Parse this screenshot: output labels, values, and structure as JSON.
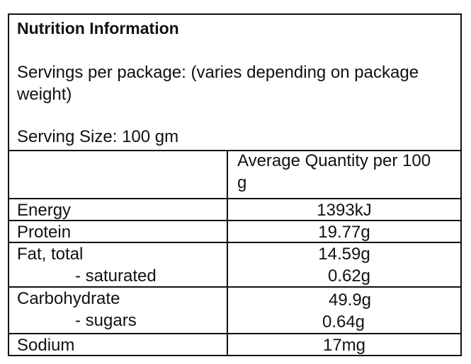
{
  "title": "Nutrition Information",
  "servings_per_package": "Servings per package: (varies depending on package weight)",
  "serving_size": "Serving Size: 100 gm",
  "column_header": "Average Quantity per 100 g",
  "rows": [
    {
      "label": "Energy",
      "value": "1393kJ"
    },
    {
      "label": "Protein",
      "value": "19.77g"
    },
    {
      "label": "Fat, total",
      "value": "14.59g",
      "sub_label": "- saturated",
      "sub_value": "0.62g"
    },
    {
      "label": "Carbohydrate",
      "value": "49.9g",
      "sub_label": "- sugars",
      "sub_value": "0.64g"
    },
    {
      "label": "Sodium",
      "value": "17mg"
    }
  ]
}
